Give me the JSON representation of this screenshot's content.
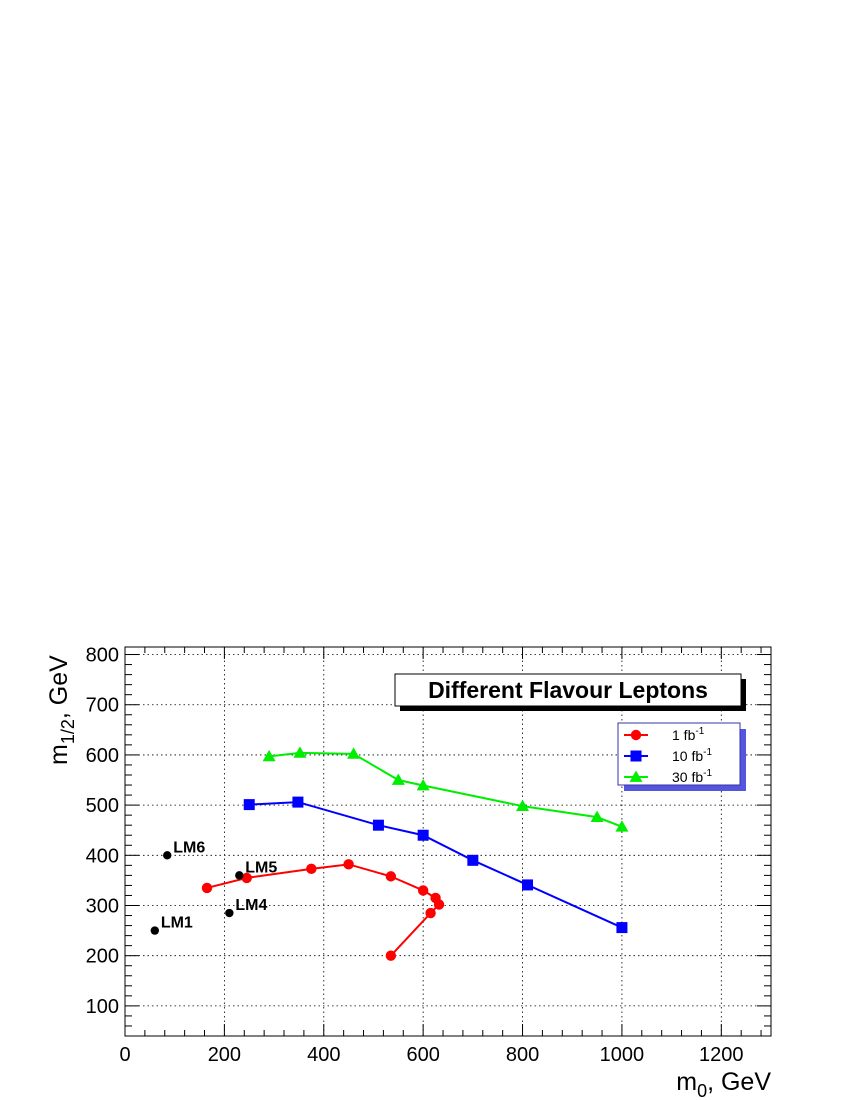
{
  "chart_data": {
    "type": "line",
    "title": "Different Flavour Leptons",
    "xlabel": {
      "base": "m",
      "sub": "0",
      "rest": ", GeV"
    },
    "ylabel": {
      "base": "m",
      "sub": "1/2",
      "rest": ", GeV"
    },
    "xlim": [
      0,
      1300
    ],
    "ylim": [
      40,
      815
    ],
    "xticks": [
      0,
      200,
      400,
      600,
      800,
      1000,
      1200
    ],
    "yticks": [
      100,
      200,
      300,
      400,
      500,
      600,
      700,
      800
    ],
    "grid": true,
    "legend_position": "top-right",
    "series": [
      {
        "name": "1 fb",
        "sup": "-1",
        "color": "#ff0000",
        "marker": "circle",
        "x": [
          165,
          245,
          375,
          450,
          535,
          600,
          625,
          632,
          615,
          535
        ],
        "y": [
          335,
          355,
          373,
          382,
          358,
          330,
          315,
          302,
          285,
          200
        ]
      },
      {
        "name": "10 fb",
        "sup": "-1",
        "color": "#0000ff",
        "marker": "square",
        "x": [
          250,
          348,
          510,
          600,
          700,
          810,
          1000
        ],
        "y": [
          501,
          506,
          460,
          440,
          390,
          341,
          256
        ]
      },
      {
        "name": "30 fb",
        "sup": "-1",
        "color": "#00ee00",
        "marker": "triangle",
        "x": [
          290,
          352,
          460,
          550,
          600,
          800,
          950,
          1000
        ],
        "y": [
          597,
          604,
          602,
          550,
          539,
          498,
          476,
          457
        ]
      }
    ],
    "points": [
      {
        "label": "LM1",
        "x": 60,
        "y": 250
      },
      {
        "label": "LM4",
        "x": 210,
        "y": 285
      },
      {
        "label": "LM5",
        "x": 230,
        "y": 360
      },
      {
        "label": "LM6",
        "x": 85,
        "y": 400
      }
    ]
  }
}
